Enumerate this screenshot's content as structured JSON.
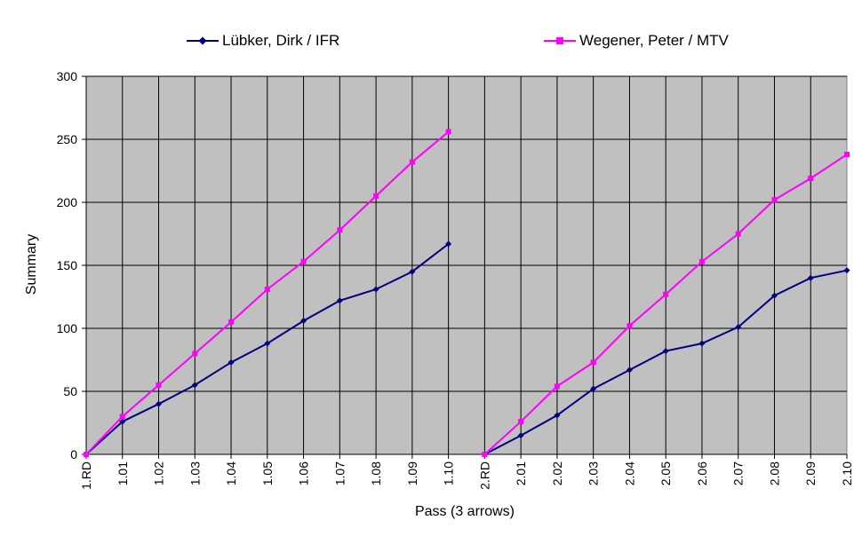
{
  "chart_data": {
    "type": "line",
    "title": "",
    "xlabel": "Pass (3 arrows)",
    "ylabel": "Summary",
    "ylim": [
      0,
      300
    ],
    "yticks": [
      "0",
      "50",
      "100",
      "150",
      "200",
      "250",
      "300"
    ],
    "categories": [
      "1.RD",
      "1.01",
      "1.02",
      "1.03",
      "1.04",
      "1.05",
      "1.06",
      "1.07",
      "1.08",
      "1.09",
      "1.10",
      "2.RD",
      "2.01",
      "2.02",
      "2.03",
      "2.04",
      "2.05",
      "2.06",
      "2.07",
      "2.08",
      "2.09",
      "2.10"
    ],
    "grid": true,
    "legend_position": "top",
    "plot_background": "#c0c0c0",
    "series": [
      {
        "name": "Lübker, Dirk / IFR",
        "color": "#000080",
        "marker": "diamond",
        "values": [
          0,
          26,
          40,
          55,
          73,
          88,
          106,
          122,
          131,
          145,
          167,
          0,
          15,
          31,
          52,
          67,
          82,
          88,
          101,
          126,
          140,
          146
        ]
      },
      {
        "name": "Wegener, Peter / MTV",
        "color": "#ff00ff",
        "marker": "square",
        "values": [
          0,
          30,
          55,
          80,
          105,
          131,
          153,
          178,
          205,
          232,
          256,
          0,
          26,
          54,
          73,
          102,
          127,
          153,
          175,
          202,
          219,
          238
        ]
      }
    ]
  }
}
